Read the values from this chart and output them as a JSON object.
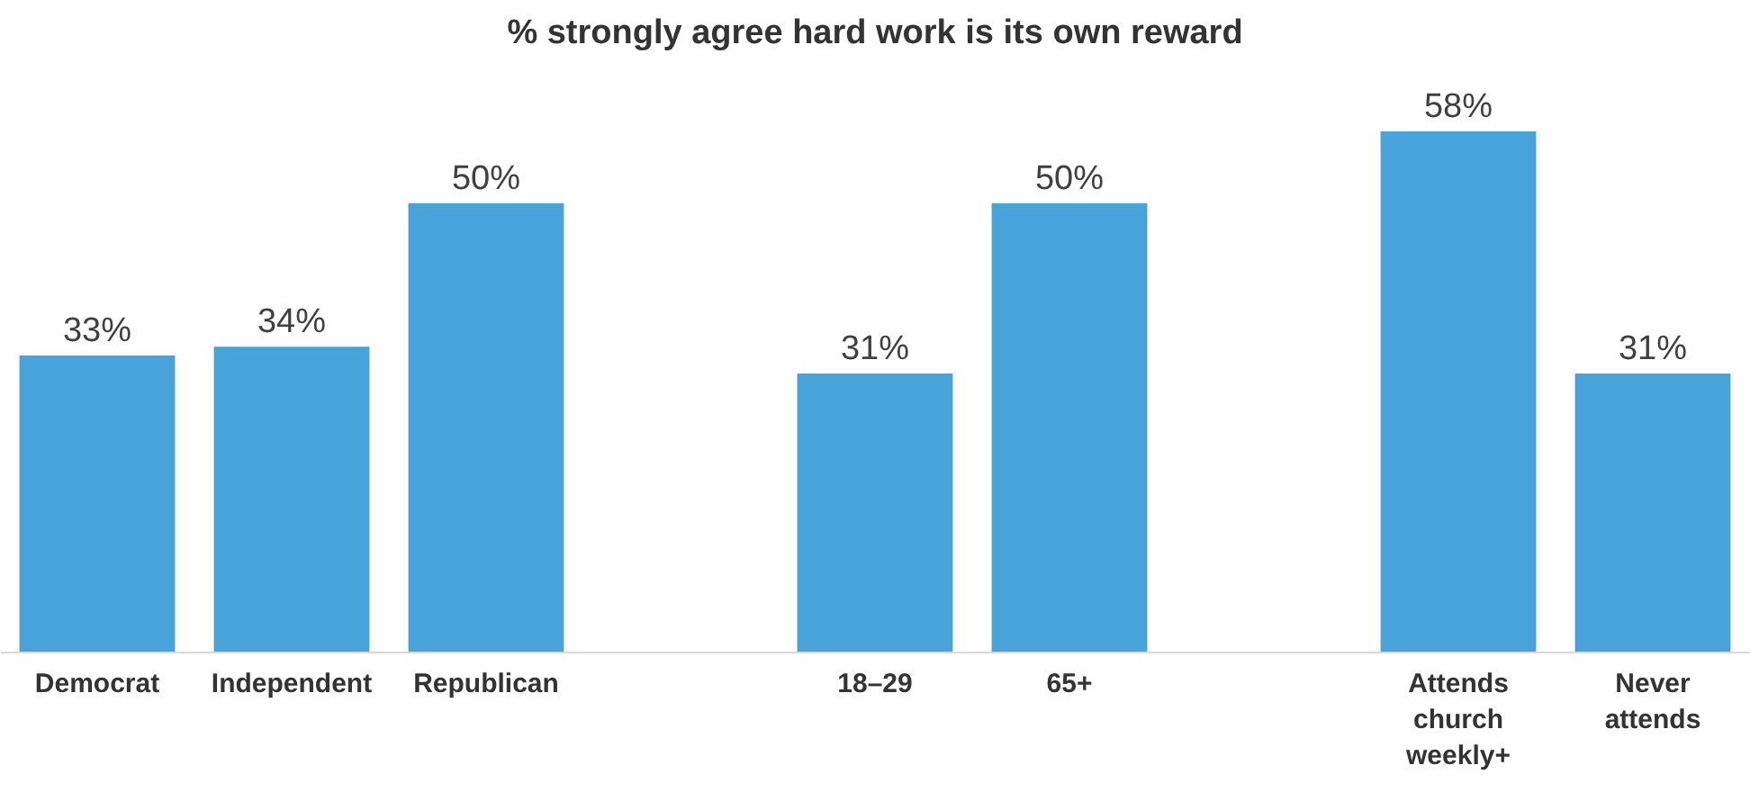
{
  "chart_data": {
    "type": "bar",
    "title": "% strongly agree hard work is its own reward",
    "categories": [
      "Democrat",
      "Independent",
      "Republican",
      null,
      "18–29",
      "65+",
      null,
      "Attends church weekly+",
      "Never attends"
    ],
    "values": [
      33,
      34,
      50,
      null,
      31,
      50,
      null,
      58,
      31
    ],
    "value_labels": [
      "33%",
      "34%",
      "50%",
      null,
      "31%",
      "50%",
      null,
      "58%",
      "31%"
    ],
    "color": "#47a3da",
    "grid": false
  }
}
